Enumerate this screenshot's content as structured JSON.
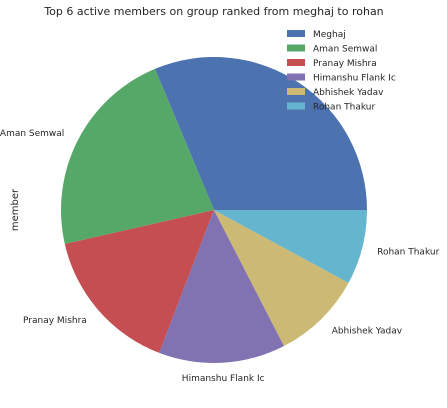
{
  "chart_data": {
    "type": "pie",
    "title": "Top 6 active members on group ranked from meghaj to rohan",
    "ylabel": "member",
    "categories": [
      "Meghaj",
      "Aman Semwal",
      "Pranay Mishra",
      "Himanshu Flank Ic",
      "Abhishek Yadav",
      "Rohan Thakur"
    ],
    "values": [
      32.5,
      23.1,
      16.2,
      13.9,
      9.9,
      8.2
    ],
    "slice_labels": [
      "",
      "Aman Semwal",
      "Pranay Mishra",
      "Himanshu Flank Ic",
      "Abhishek Yadav",
      "Rohan Thakur"
    ],
    "legend_labels": [
      "Meghaj",
      "Aman Semwal",
      "Pranay Mishra",
      "Himanshu Flank Ic",
      "Abhishek Yadav",
      "Rohan Thakur"
    ],
    "colors": [
      "#4c72b0",
      "#55a868",
      "#c44e52",
      "#8172b2",
      "#ccb974",
      "#64b5cd"
    ],
    "start_angle_deg": 0,
    "direction": "counterclockwise",
    "legend_position": "upper-right"
  }
}
